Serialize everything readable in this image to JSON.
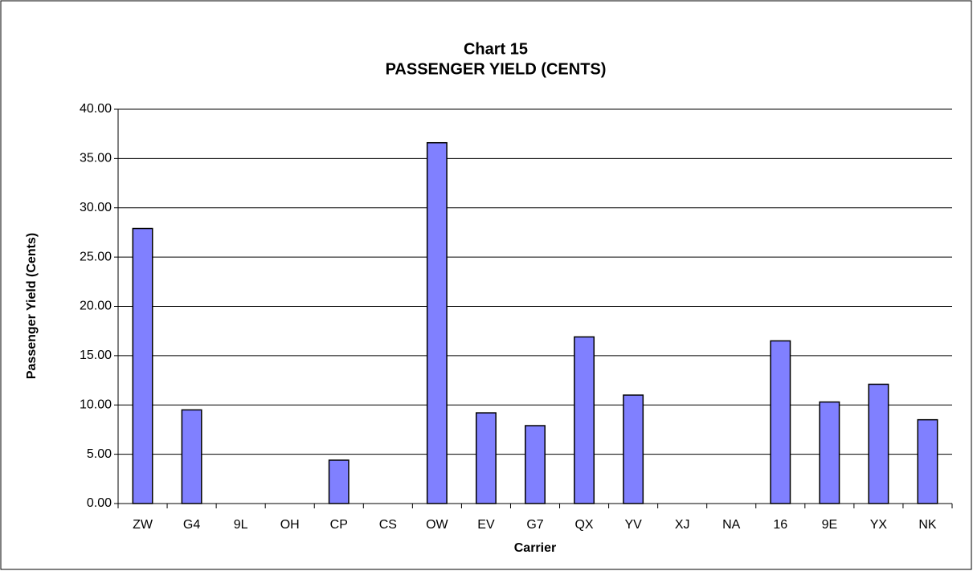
{
  "chart_data": {
    "type": "bar",
    "title": "Chart 15",
    "subtitle": "PASSENGER YIELD (CENTS)",
    "x_label": "Carrier",
    "y_label": "Passenger Yield (Cents)",
    "categories": [
      "ZW",
      "G4",
      "9L",
      "OH",
      "CP",
      "CS",
      "OW",
      "EV",
      "G7",
      "QX",
      "YV",
      "XJ",
      "NA",
      "16",
      "9E",
      "YX",
      "NK"
    ],
    "values": [
      27.9,
      9.5,
      0,
      0,
      4.4,
      0,
      36.6,
      9.2,
      7.9,
      16.9,
      11.0,
      0,
      0,
      16.5,
      10.3,
      12.1,
      8.5
    ],
    "color": "#8080ff",
    "ylim": [
      0,
      40
    ],
    "yticks": [
      {
        "value": 0,
        "label": "0.00"
      },
      {
        "value": 5,
        "label": "5.00"
      },
      {
        "value": 10,
        "label": "10.00"
      },
      {
        "value": 15,
        "label": "15.00"
      },
      {
        "value": 20,
        "label": "20.00"
      },
      {
        "value": 25,
        "label": "25.00"
      },
      {
        "value": 30,
        "label": "30.00"
      },
      {
        "value": 35,
        "label": "35.00"
      },
      {
        "value": 40,
        "label": "40.00"
      }
    ],
    "grid": true
  }
}
